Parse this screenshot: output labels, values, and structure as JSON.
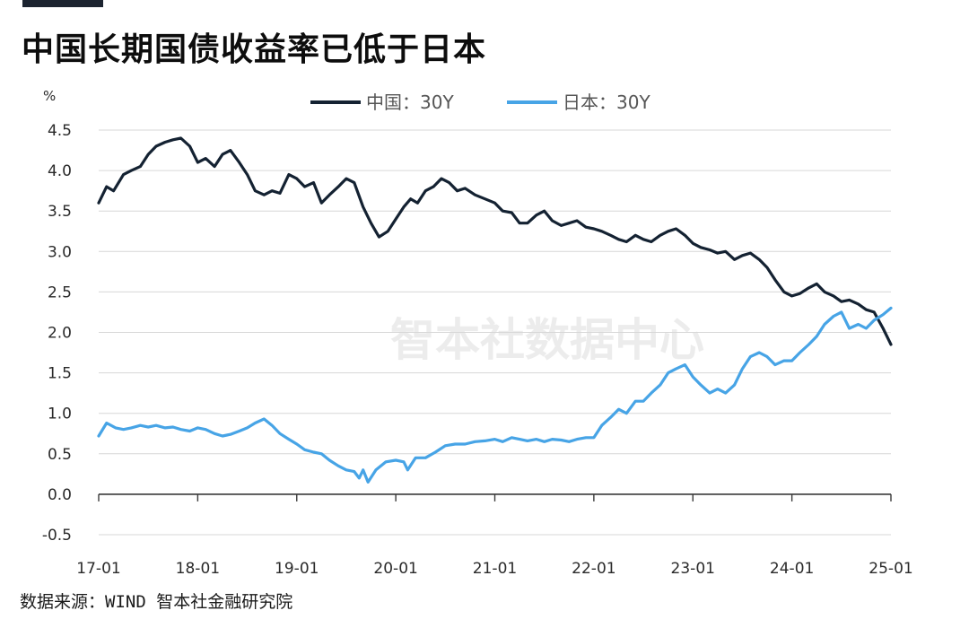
{
  "title": "中国长期国债收益率已低于日本",
  "source": "数据来源：WIND 智本社金融研究院",
  "watermark": "智本社数据中心",
  "colors": {
    "china": "#142232",
    "japan": "#47a4e6",
    "axis": "#3a3a3a",
    "grid": "#d7d7d7",
    "watermark": "#ececec"
  },
  "chart_data": {
    "type": "line",
    "ylabel": "%",
    "ylim": [
      -0.5,
      4.5
    ],
    "yticks": [
      -0.5,
      0.0,
      0.5,
      1.0,
      1.5,
      2.0,
      2.5,
      3.0,
      3.5,
      4.0,
      4.5
    ],
    "ytick_labels": [
      "-0.5",
      "0.0",
      "0.5",
      "1.0",
      "1.5",
      "2.0",
      "2.5",
      "3.0",
      "3.5",
      "4.0",
      "4.5"
    ],
    "grid": "horizontal",
    "legend_position": "top-center",
    "xlim": [
      2017.0,
      2025.0
    ],
    "xticks": [
      2017,
      2018,
      2019,
      2020,
      2021,
      2022,
      2023,
      2024,
      2025
    ],
    "xtick_labels": [
      "17-01",
      "18-01",
      "19-01",
      "20-01",
      "21-01",
      "22-01",
      "23-01",
      "24-01",
      "25-01"
    ],
    "series": [
      {
        "name": "中国：30Y",
        "color": "#142232",
        "x": [
          2017.0,
          2017.08,
          2017.15,
          2017.25,
          2017.33,
          2017.42,
          2017.5,
          2017.58,
          2017.67,
          2017.75,
          2017.83,
          2017.92,
          2018.0,
          2018.08,
          2018.17,
          2018.25,
          2018.33,
          2018.42,
          2018.5,
          2018.58,
          2018.67,
          2018.75,
          2018.83,
          2018.92,
          2019.0,
          2019.08,
          2019.17,
          2019.25,
          2019.33,
          2019.42,
          2019.5,
          2019.58,
          2019.67,
          2019.75,
          2019.83,
          2019.92,
          2020.0,
          2020.08,
          2020.15,
          2020.22,
          2020.3,
          2020.38,
          2020.46,
          2020.54,
          2020.62,
          2020.7,
          2020.8,
          2020.9,
          2021.0,
          2021.08,
          2021.17,
          2021.25,
          2021.33,
          2021.42,
          2021.5,
          2021.58,
          2021.67,
          2021.75,
          2021.83,
          2021.92,
          2022.0,
          2022.08,
          2022.17,
          2022.25,
          2022.33,
          2022.42,
          2022.5,
          2022.58,
          2022.67,
          2022.75,
          2022.83,
          2022.92,
          2023.0,
          2023.08,
          2023.17,
          2023.25,
          2023.33,
          2023.42,
          2023.5,
          2023.58,
          2023.67,
          2023.75,
          2023.83,
          2023.92,
          2024.0,
          2024.08,
          2024.17,
          2024.25,
          2024.33,
          2024.42,
          2024.5,
          2024.58,
          2024.67,
          2024.75,
          2024.83,
          2024.92,
          2025.0
        ],
        "values": [
          3.6,
          3.8,
          3.75,
          3.95,
          4.0,
          4.05,
          4.2,
          4.3,
          4.35,
          4.38,
          4.4,
          4.3,
          4.1,
          4.15,
          4.05,
          4.2,
          4.25,
          4.1,
          3.95,
          3.75,
          3.7,
          3.75,
          3.72,
          3.95,
          3.9,
          3.8,
          3.85,
          3.6,
          3.7,
          3.8,
          3.9,
          3.85,
          3.55,
          3.35,
          3.18,
          3.25,
          3.4,
          3.55,
          3.65,
          3.6,
          3.75,
          3.8,
          3.9,
          3.85,
          3.75,
          3.78,
          3.7,
          3.65,
          3.6,
          3.5,
          3.48,
          3.35,
          3.35,
          3.45,
          3.5,
          3.38,
          3.32,
          3.35,
          3.38,
          3.3,
          3.28,
          3.25,
          3.2,
          3.15,
          3.12,
          3.2,
          3.15,
          3.12,
          3.2,
          3.25,
          3.28,
          3.2,
          3.1,
          3.05,
          3.02,
          2.98,
          3.0,
          2.9,
          2.95,
          2.98,
          2.9,
          2.8,
          2.65,
          2.5,
          2.45,
          2.48,
          2.55,
          2.6,
          2.5,
          2.45,
          2.38,
          2.4,
          2.35,
          2.28,
          2.25,
          2.05,
          1.85
        ]
      },
      {
        "name": "日本：30Y",
        "color": "#47a4e6",
        "x": [
          2017.0,
          2017.08,
          2017.17,
          2017.25,
          2017.33,
          2017.42,
          2017.5,
          2017.58,
          2017.67,
          2017.75,
          2017.83,
          2017.92,
          2018.0,
          2018.08,
          2018.17,
          2018.25,
          2018.33,
          2018.42,
          2018.5,
          2018.58,
          2018.67,
          2018.75,
          2018.83,
          2018.92,
          2019.0,
          2019.08,
          2019.17,
          2019.25,
          2019.33,
          2019.42,
          2019.5,
          2019.58,
          2019.63,
          2019.67,
          2019.72,
          2019.8,
          2019.9,
          2020.0,
          2020.08,
          2020.12,
          2020.2,
          2020.3,
          2020.4,
          2020.5,
          2020.6,
          2020.7,
          2020.8,
          2020.9,
          2021.0,
          2021.08,
          2021.17,
          2021.25,
          2021.33,
          2021.42,
          2021.5,
          2021.58,
          2021.67,
          2021.75,
          2021.83,
          2021.92,
          2022.0,
          2022.08,
          2022.17,
          2022.25,
          2022.33,
          2022.42,
          2022.5,
          2022.58,
          2022.67,
          2022.75,
          2022.83,
          2022.92,
          2023.0,
          2023.08,
          2023.17,
          2023.25,
          2023.33,
          2023.42,
          2023.5,
          2023.58,
          2023.67,
          2023.75,
          2023.83,
          2023.92,
          2024.0,
          2024.08,
          2024.17,
          2024.25,
          2024.33,
          2024.42,
          2024.5,
          2024.58,
          2024.67,
          2024.75,
          2024.83,
          2024.92,
          2025.0
        ],
        "values": [
          0.72,
          0.88,
          0.82,
          0.8,
          0.82,
          0.85,
          0.83,
          0.85,
          0.82,
          0.83,
          0.8,
          0.78,
          0.82,
          0.8,
          0.75,
          0.72,
          0.74,
          0.78,
          0.82,
          0.88,
          0.93,
          0.85,
          0.75,
          0.68,
          0.62,
          0.55,
          0.52,
          0.5,
          0.42,
          0.35,
          0.3,
          0.28,
          0.2,
          0.3,
          0.15,
          0.3,
          0.4,
          0.42,
          0.4,
          0.3,
          0.45,
          0.45,
          0.52,
          0.6,
          0.62,
          0.62,
          0.65,
          0.66,
          0.68,
          0.65,
          0.7,
          0.68,
          0.66,
          0.68,
          0.65,
          0.68,
          0.67,
          0.65,
          0.68,
          0.7,
          0.7,
          0.85,
          0.95,
          1.05,
          1.0,
          1.15,
          1.15,
          1.25,
          1.35,
          1.5,
          1.55,
          1.6,
          1.45,
          1.35,
          1.25,
          1.3,
          1.25,
          1.35,
          1.55,
          1.7,
          1.75,
          1.7,
          1.6,
          1.65,
          1.65,
          1.75,
          1.85,
          1.95,
          2.1,
          2.2,
          2.25,
          2.05,
          2.1,
          2.05,
          2.15,
          2.22,
          2.3
        ]
      }
    ]
  }
}
